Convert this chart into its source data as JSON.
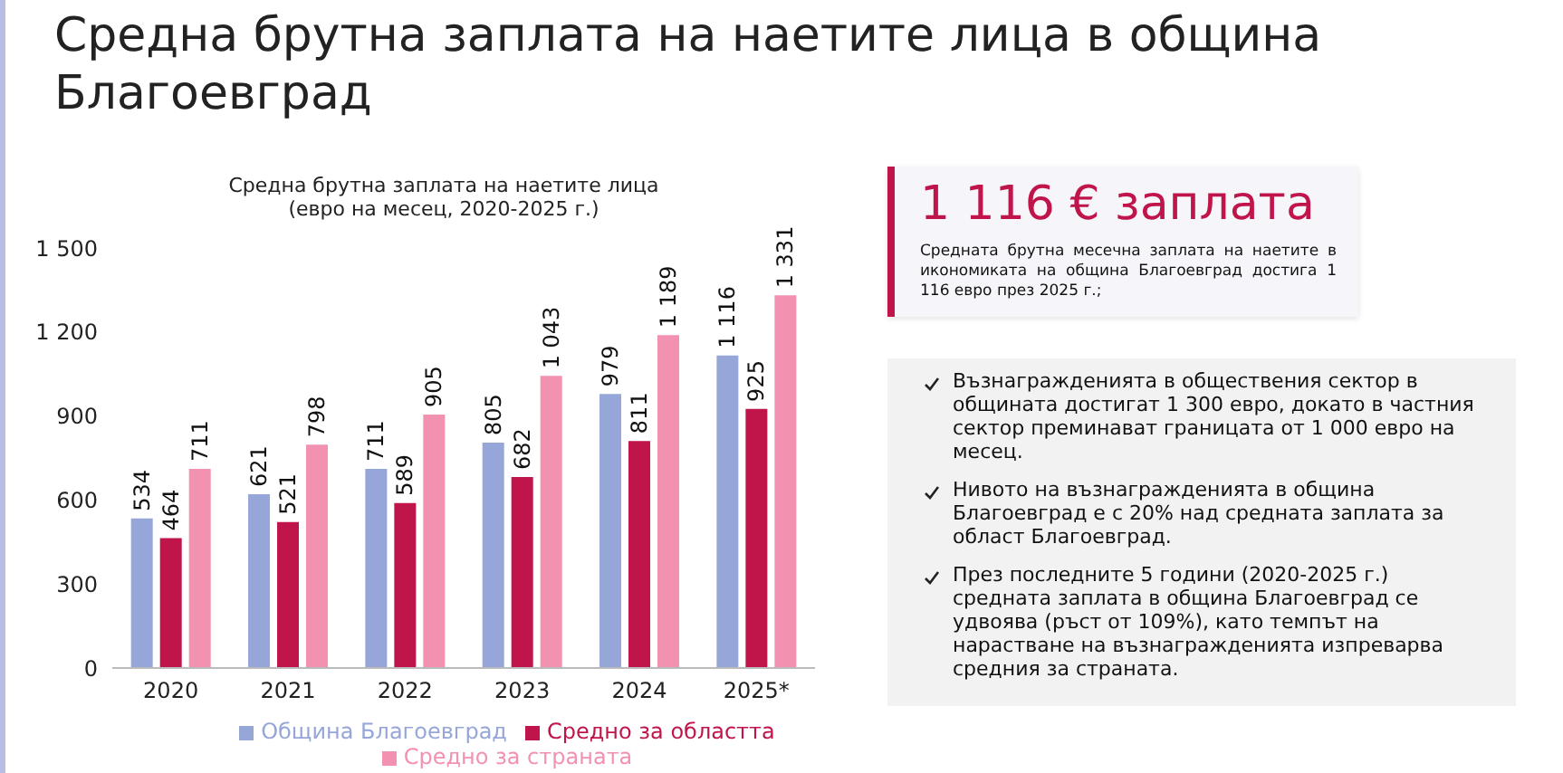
{
  "chart_data": {
    "type": "bar",
    "title": "Средна брутна заплата на наетите лица в община Благоевград",
    "subtitle": "Средна брутна заплата на наетите лица\n(евро на месец, 2020-2025 г.)",
    "categories": [
      "2020",
      "2021",
      "2022",
      "2023",
      "2024",
      "2025*"
    ],
    "series": [
      {
        "name": "Община Благоевград",
        "color": "#97a6d8",
        "values": [
          534,
          621,
          711,
          805,
          979,
          1116
        ],
        "value_labels": [
          "534",
          "621",
          "711",
          "805",
          "979",
          "1 116"
        ]
      },
      {
        "name": "Средно за областта",
        "color": "#c0154a",
        "values": [
          464,
          521,
          589,
          682,
          811,
          925
        ],
        "value_labels": [
          "464",
          "521",
          "589",
          "682",
          "811",
          "925"
        ]
      },
      {
        "name": "Средно за страната",
        "color": "#f291b0",
        "values": [
          711,
          798,
          905,
          1043,
          1189,
          1331
        ],
        "value_labels": [
          "711",
          "798",
          "905",
          "1 043",
          "1 189",
          "1 331"
        ]
      }
    ],
    "ylim": [
      0,
      1500
    ],
    "yticks": [
      0,
      300,
      600,
      900,
      {
        "value": 1200,
        "label": "1 200"
      },
      {
        "value": 1500,
        "label": "1 500"
      }
    ],
    "grid": false,
    "legend": "bottom",
    "annotations": [
      "1 116 € заплата",
      "Средната брутна месечна заплата на наетите в икономиката на община Благоевград достига 1 116 евро през 2025 г.;",
      "Възнагражденията в обществения сектор в общината достигат 1 300 евро, докато в частния сектор преминават границата от 1 000 евро на месец.",
      "Нивото на възнагражденията в община Благоевград е с 20% над средната заплата за област Благоевград.",
      "През последните 5 години (2020-2025 г.) средната заплата в община Благоевград се удвоява (ръст от 109%), като темпът на нарастване на възнагражденията изпреварва средния за страната."
    ]
  }
}
